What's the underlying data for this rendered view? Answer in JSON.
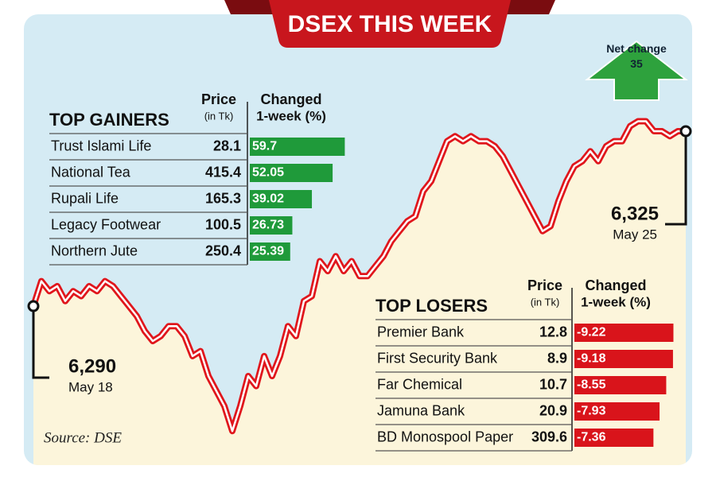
{
  "chart_data": {
    "type": "line",
    "title": "DSEX THIS WEEK",
    "values": [
      6290,
      6295,
      6293,
      6294,
      6291,
      6293,
      6292,
      6294,
      6293,
      6295,
      6294,
      6292,
      6290,
      6288,
      6285,
      6283,
      6284,
      6286,
      6286,
      6284,
      6280,
      6281,
      6276,
      6273,
      6270,
      6265,
      6270,
      6276,
      6274,
      6280,
      6276,
      6280,
      6286,
      6284,
      6291,
      6292,
      6299,
      6297,
      6300,
      6297,
      6299,
      6296,
      6296,
      6298,
      6300,
      6303,
      6305,
      6307,
      6308,
      6313,
      6315,
      6319,
      6323,
      6324,
      6323,
      6324,
      6323,
      6323,
      6322,
      6320,
      6317,
      6314,
      6311,
      6308,
      6305,
      6306,
      6311,
      6315,
      6318,
      6319,
      6321,
      6319,
      6322,
      6323,
      6323,
      6326,
      6327,
      6327,
      6325,
      6325,
      6324,
      6325,
      6325
    ],
    "ylim": [
      6260,
      6330
    ],
    "color": "#e0161c",
    "start": {
      "value": {
        "value": 6290,
        "label": "6,290"
      },
      "date": "May 18"
    },
    "end": {
      "value": {
        "value": 6325,
        "label": "6,325"
      },
      "date": "May 25"
    },
    "net_change": {
      "label": "Net change",
      "value": 35
    },
    "source": "Source: DSE",
    "gainers": {
      "title": "TOP GAINERS",
      "price_header": "Price",
      "price_unit": "(in Tk)",
      "change_header": "Changed",
      "change_unit": "1-week (%)",
      "color": "#1f9a3a",
      "rows": [
        [
          "Trust Islami Life",
          28.1,
          59.7
        ],
        [
          "National Tea",
          415.4,
          52.05
        ],
        [
          "Rupali Life",
          165.3,
          39.02
        ],
        [
          "Legacy Footwear",
          100.5,
          26.73
        ],
        [
          "Northern Jute",
          250.4,
          25.39
        ]
      ]
    },
    "losers": {
      "title": "TOP LOSERS",
      "price_header": "Price",
      "price_unit": "(in Tk)",
      "change_header": "Changed",
      "change_unit": "1-week (%)",
      "color": "#d9141b",
      "rows": [
        [
          "Premier Bank",
          12.8,
          -9.22
        ],
        [
          "First Security Bank",
          8.9,
          -9.18
        ],
        [
          "Far Chemical",
          10.7,
          -8.55
        ],
        [
          "Jamuna Bank",
          20.9,
          -7.93
        ],
        [
          "BD Monospool Paper",
          309.6,
          -7.36
        ]
      ]
    }
  }
}
